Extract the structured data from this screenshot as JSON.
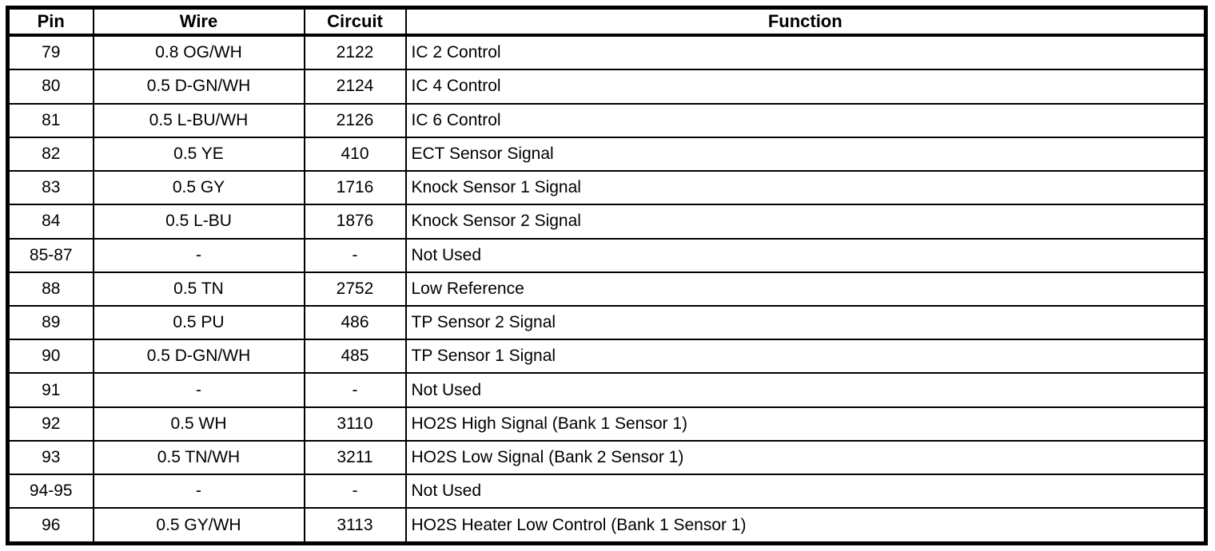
{
  "table": {
    "columns": [
      "Pin",
      "Wire",
      "Circuit",
      "Function"
    ],
    "rows": [
      {
        "pin": "79",
        "wire": "0.8 OG/WH",
        "circuit": "2122",
        "function": "IC 2 Control"
      },
      {
        "pin": "80",
        "wire": "0.5 D-GN/WH",
        "circuit": "2124",
        "function": "IC 4 Control"
      },
      {
        "pin": "81",
        "wire": "0.5 L-BU/WH",
        "circuit": "2126",
        "function": "IC 6 Control"
      },
      {
        "pin": "82",
        "wire": "0.5 YE",
        "circuit": "410",
        "function": "ECT Sensor Signal"
      },
      {
        "pin": "83",
        "wire": "0.5 GY",
        "circuit": "1716",
        "function": "Knock Sensor 1 Signal"
      },
      {
        "pin": "84",
        "wire": "0.5 L-BU",
        "circuit": "1876",
        "function": "Knock Sensor 2 Signal"
      },
      {
        "pin": "85-87",
        "wire": "-",
        "circuit": "-",
        "function": "Not Used"
      },
      {
        "pin": "88",
        "wire": "0.5 TN",
        "circuit": "2752",
        "function": "Low Reference"
      },
      {
        "pin": "89",
        "wire": "0.5 PU",
        "circuit": "486",
        "function": "TP Sensor 2 Signal"
      },
      {
        "pin": "90",
        "wire": "0.5 D-GN/WH",
        "circuit": "485",
        "function": "TP Sensor 1 Signal"
      },
      {
        "pin": "91",
        "wire": "-",
        "circuit": "-",
        "function": "Not Used"
      },
      {
        "pin": "92",
        "wire": "0.5 WH",
        "circuit": "3110",
        "function": "HO2S High Signal (Bank 1 Sensor 1)"
      },
      {
        "pin": "93",
        "wire": "0.5 TN/WH",
        "circuit": "3211",
        "function": "HO2S Low Signal (Bank 2 Sensor 1)"
      },
      {
        "pin": "94-95",
        "wire": "-",
        "circuit": "-",
        "function": "Not Used"
      },
      {
        "pin": "96",
        "wire": "0.5 GY/WH",
        "circuit": "3113",
        "function": "HO2S Heater Low Control (Bank 1 Sensor 1)"
      }
    ],
    "colors": {
      "border": "#000000",
      "background": "#ffffff",
      "text": "#000000"
    }
  }
}
